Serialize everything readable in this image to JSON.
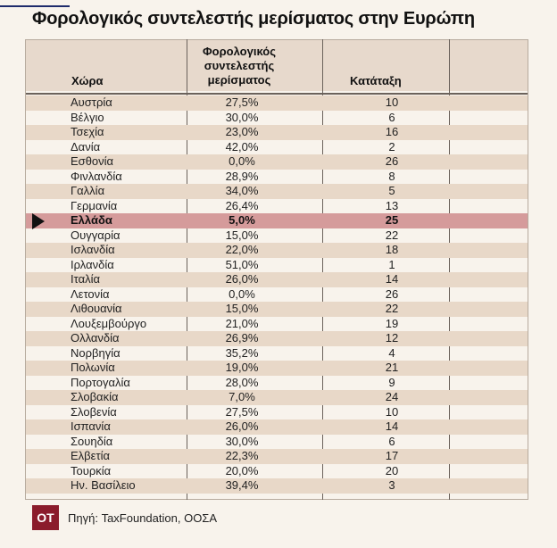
{
  "title": "Φορολογικός συντελεστής μερίσματος στην Ευρώπη",
  "columns": {
    "country": "Χώρα",
    "rate": "Φορολογικός\nσυντελεστής\nμερίσματος",
    "rank": "Κατάταξη"
  },
  "rows": [
    {
      "country": "Αυστρία",
      "rate": "27,5%",
      "rank": "10"
    },
    {
      "country": "Βέλγιο",
      "rate": "30,0%",
      "rank": "6"
    },
    {
      "country": "Τσεχία",
      "rate": "23,0%",
      "rank": "16"
    },
    {
      "country": "Δανία",
      "rate": "42,0%",
      "rank": "2"
    },
    {
      "country": "Εσθονία",
      "rate": "0,0%",
      "rank": "26"
    },
    {
      "country": "Φινλανδία",
      "rate": "28,9%",
      "rank": "8"
    },
    {
      "country": "Γαλλία",
      "rate": "34,0%",
      "rank": "5"
    },
    {
      "country": "Γερμανία",
      "rate": "26,4%",
      "rank": "13"
    },
    {
      "country": "Ελλάδα",
      "rate": "5,0%",
      "rank": "25",
      "highlight": true
    },
    {
      "country": "Ουγγαρία",
      "rate": "15,0%",
      "rank": "22"
    },
    {
      "country": "Ισλανδία",
      "rate": "22,0%",
      "rank": "18"
    },
    {
      "country": "Ιρλανδία",
      "rate": "51,0%",
      "rank": "1"
    },
    {
      "country": "Ιταλία",
      "rate": "26,0%",
      "rank": "14"
    },
    {
      "country": "Λετονία",
      "rate": "0,0%",
      "rank": "26"
    },
    {
      "country": "Λιθουανία",
      "rate": "15,0%",
      "rank": "22"
    },
    {
      "country": "Λουξεμβούργο",
      "rate": "21,0%",
      "rank": "19"
    },
    {
      "country": "Ολλανδία",
      "rate": "26,9%",
      "rank": "12"
    },
    {
      "country": "Νορβηγία",
      "rate": "35,2%",
      "rank": "4"
    },
    {
      "country": "Πολωνία",
      "rate": "19,0%",
      "rank": "21"
    },
    {
      "country": "Πορτογαλία",
      "rate": "28,0%",
      "rank": "9"
    },
    {
      "country": "Σλοβακία",
      "rate": "7,0%",
      "rank": "24"
    },
    {
      "country": "Σλοβενία",
      "rate": "27,5%",
      "rank": "10"
    },
    {
      "country": "Ισπανία",
      "rate": "26,0%",
      "rank": "14"
    },
    {
      "country": "Σουηδία",
      "rate": "30,0%",
      "rank": "6"
    },
    {
      "country": "Ελβετία",
      "rate": "22,3%",
      "rank": "17"
    },
    {
      "country": "Τουρκία",
      "rate": "20,0%",
      "rank": "20"
    },
    {
      "country": "Ην. Βασίλειο",
      "rate": "39,4%",
      "rank": "3"
    }
  ],
  "footer": {
    "logo": "OT",
    "source": "Πηγή: TaxFoundation, ΟΟΣΑ"
  },
  "colors": {
    "row_alt": "#e8d8c8",
    "highlight": "#d59b9b",
    "logo_bg": "#8b1c2c"
  },
  "chart_data": {
    "type": "table",
    "title": "Φορολογικός συντελεστής μερίσματος στην Ευρώπη",
    "headers": [
      "Χώρα",
      "Φορολογικός συντελεστής μερίσματος",
      "Κατάταξη"
    ],
    "rows": [
      [
        "Αυστρία",
        27.5,
        10
      ],
      [
        "Βέλγιο",
        30.0,
        6
      ],
      [
        "Τσεχία",
        23.0,
        16
      ],
      [
        "Δανία",
        42.0,
        2
      ],
      [
        "Εσθονία",
        0.0,
        26
      ],
      [
        "Φινλανδία",
        28.9,
        8
      ],
      [
        "Γαλλία",
        34.0,
        5
      ],
      [
        "Γερμανία",
        26.4,
        13
      ],
      [
        "Ελλάδα",
        5.0,
        25
      ],
      [
        "Ουγγαρία",
        15.0,
        22
      ],
      [
        "Ισλανδία",
        22.0,
        18
      ],
      [
        "Ιρλανδία",
        51.0,
        1
      ],
      [
        "Ιταλία",
        26.0,
        14
      ],
      [
        "Λετονία",
        0.0,
        26
      ],
      [
        "Λιθουανία",
        15.0,
        22
      ],
      [
        "Λουξεμβούργο",
        21.0,
        19
      ],
      [
        "Ολλανδία",
        26.9,
        12
      ],
      [
        "Νορβηγία",
        35.2,
        4
      ],
      [
        "Πολωνία",
        19.0,
        21
      ],
      [
        "Πορτογαλία",
        28.0,
        9
      ],
      [
        "Σλοβακία",
        7.0,
        24
      ],
      [
        "Σλοβενία",
        27.5,
        10
      ],
      [
        "Ισπανία",
        26.0,
        14
      ],
      [
        "Σουηδία",
        30.0,
        6
      ],
      [
        "Ελβετία",
        22.3,
        17
      ],
      [
        "Τουρκία",
        20.0,
        20
      ],
      [
        "Ην. Βασίλειο",
        39.4,
        3
      ]
    ]
  }
}
